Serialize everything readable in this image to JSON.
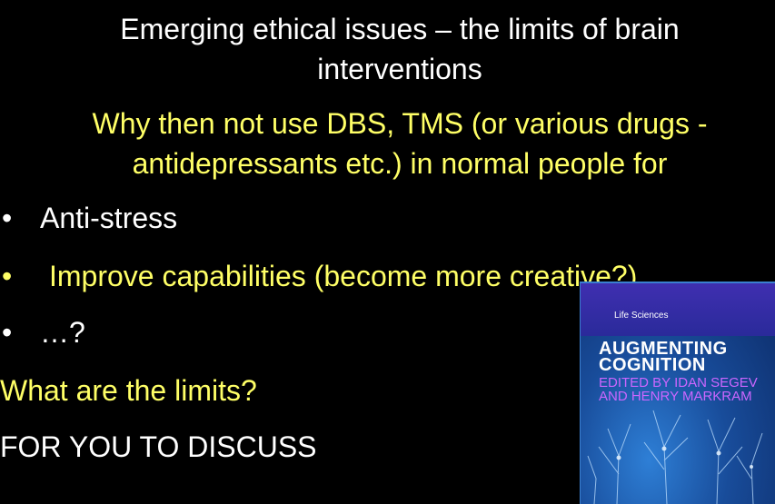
{
  "slide": {
    "title": "Emerging ethical issues – the limits of brain interventions",
    "subtitle": "Why then not use DBS, TMS (or various drugs - antidepressants etc.) in normal people for",
    "bullets": [
      {
        "marker": "•",
        "text": "Anti-stress"
      },
      {
        "marker": "•",
        "text": "Improve capabilities (become more creative?)"
      },
      {
        "marker": "•",
        "text": "…?"
      }
    ],
    "question": "What are the limits?",
    "discuss": "FOR YOU TO DISCUSS"
  },
  "book_cover": {
    "series": "Life Sciences",
    "title_line1": "AUGMENTING",
    "title_line2": "COGNITION",
    "editors": "Edited by Idan Segev and Henry Markram"
  },
  "colors": {
    "background": "#000000",
    "white_text": "#ffffff",
    "yellow_text": "#ffff66",
    "cover_blue": "#184c9a",
    "editors_magenta": "#cc66ff"
  }
}
